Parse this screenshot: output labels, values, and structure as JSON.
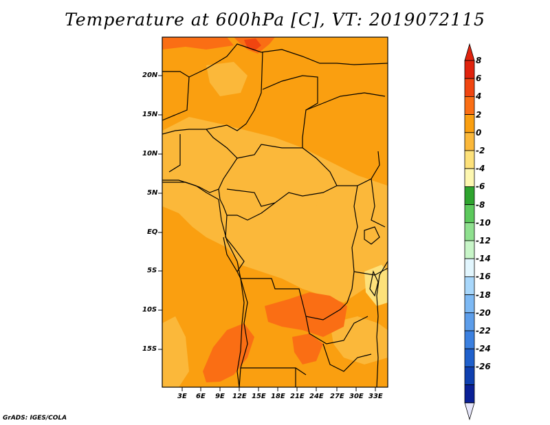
{
  "title": "Temperature at 600hPa [C], VT: 2019072115",
  "footer": "GrADS: IGES/COLA",
  "map": {
    "lat_labels": [
      "20N",
      "15N",
      "10N",
      "5N",
      "EQ",
      "5S",
      "10S",
      "15S"
    ],
    "lon_labels": [
      "3E",
      "6E",
      "9E",
      "12E",
      "15E",
      "18E",
      "21E",
      "24E",
      "27E",
      "30E",
      "33E"
    ],
    "fill_colors": {
      "gt_6": "#f04510",
      "4_to_6": "#fa6e14",
      "2_to_4": "#fa9f10",
      "0_to_2": "#fbb83a",
      "neg2_to_0": "#fde17a"
    }
  },
  "colorbar": {
    "labels": [
      "8",
      "6",
      "4",
      "2",
      "0",
      "-2",
      "-4",
      "-6",
      "-8",
      "-10",
      "-12",
      "-14",
      "-16",
      "-18",
      "-20",
      "-22",
      "-24",
      "-26"
    ],
    "colors": [
      "#e0230e",
      "#f04510",
      "#fa6e14",
      "#fa9f10",
      "#fbb83a",
      "#fde17a",
      "#fdf7b0",
      "#2ea42e",
      "#5cc95c",
      "#8fe08f",
      "#c8f5c8",
      "#e2f6fe",
      "#a8d7fb",
      "#7db9f4",
      "#5c9dea",
      "#3b80e0",
      "#1f60cc",
      "#0f40b0",
      "#0a2096"
    ],
    "top_arrow_color": "#e0230e",
    "bottom_arrow_color": "#e6e6fa"
  }
}
